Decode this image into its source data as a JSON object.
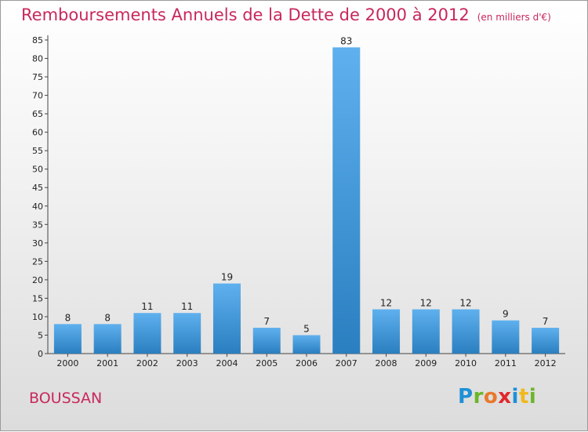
{
  "title": "Remboursements Annuels de la Dette de 2000 à 2012",
  "unit_note": "(en milliers d'€)",
  "commune": "BOUSSAN",
  "logo": {
    "letters": [
      "P",
      "r",
      "o",
      "x",
      "i",
      "t",
      "i"
    ],
    "colors": [
      "#1e90d6",
      "#6bb52a",
      "#e8792b",
      "#e0282d",
      "#1e90d6",
      "#f0b81c",
      "#6bb52a"
    ]
  },
  "colors": {
    "title": "#c8285a",
    "bar_top": "#5fb0ee",
    "bar_bottom": "#2a7fc0"
  },
  "chart_data": {
    "type": "bar",
    "title": "Remboursements Annuels de la Dette de 2000 à 2012",
    "subtitle": "(en milliers d'€)",
    "categories": [
      "2000",
      "2001",
      "2002",
      "2003",
      "2004",
      "2005",
      "2006",
      "2007",
      "2008",
      "2009",
      "2010",
      "2011",
      "2012"
    ],
    "values": [
      8,
      8,
      11,
      11,
      19,
      7,
      5,
      83,
      12,
      12,
      12,
      9,
      7
    ],
    "ylim": [
      0,
      85
    ],
    "yticks": [
      0,
      5,
      10,
      15,
      20,
      25,
      30,
      35,
      40,
      45,
      50,
      55,
      60,
      65,
      70,
      75,
      80,
      85
    ],
    "grid": false,
    "legend": "none"
  }
}
